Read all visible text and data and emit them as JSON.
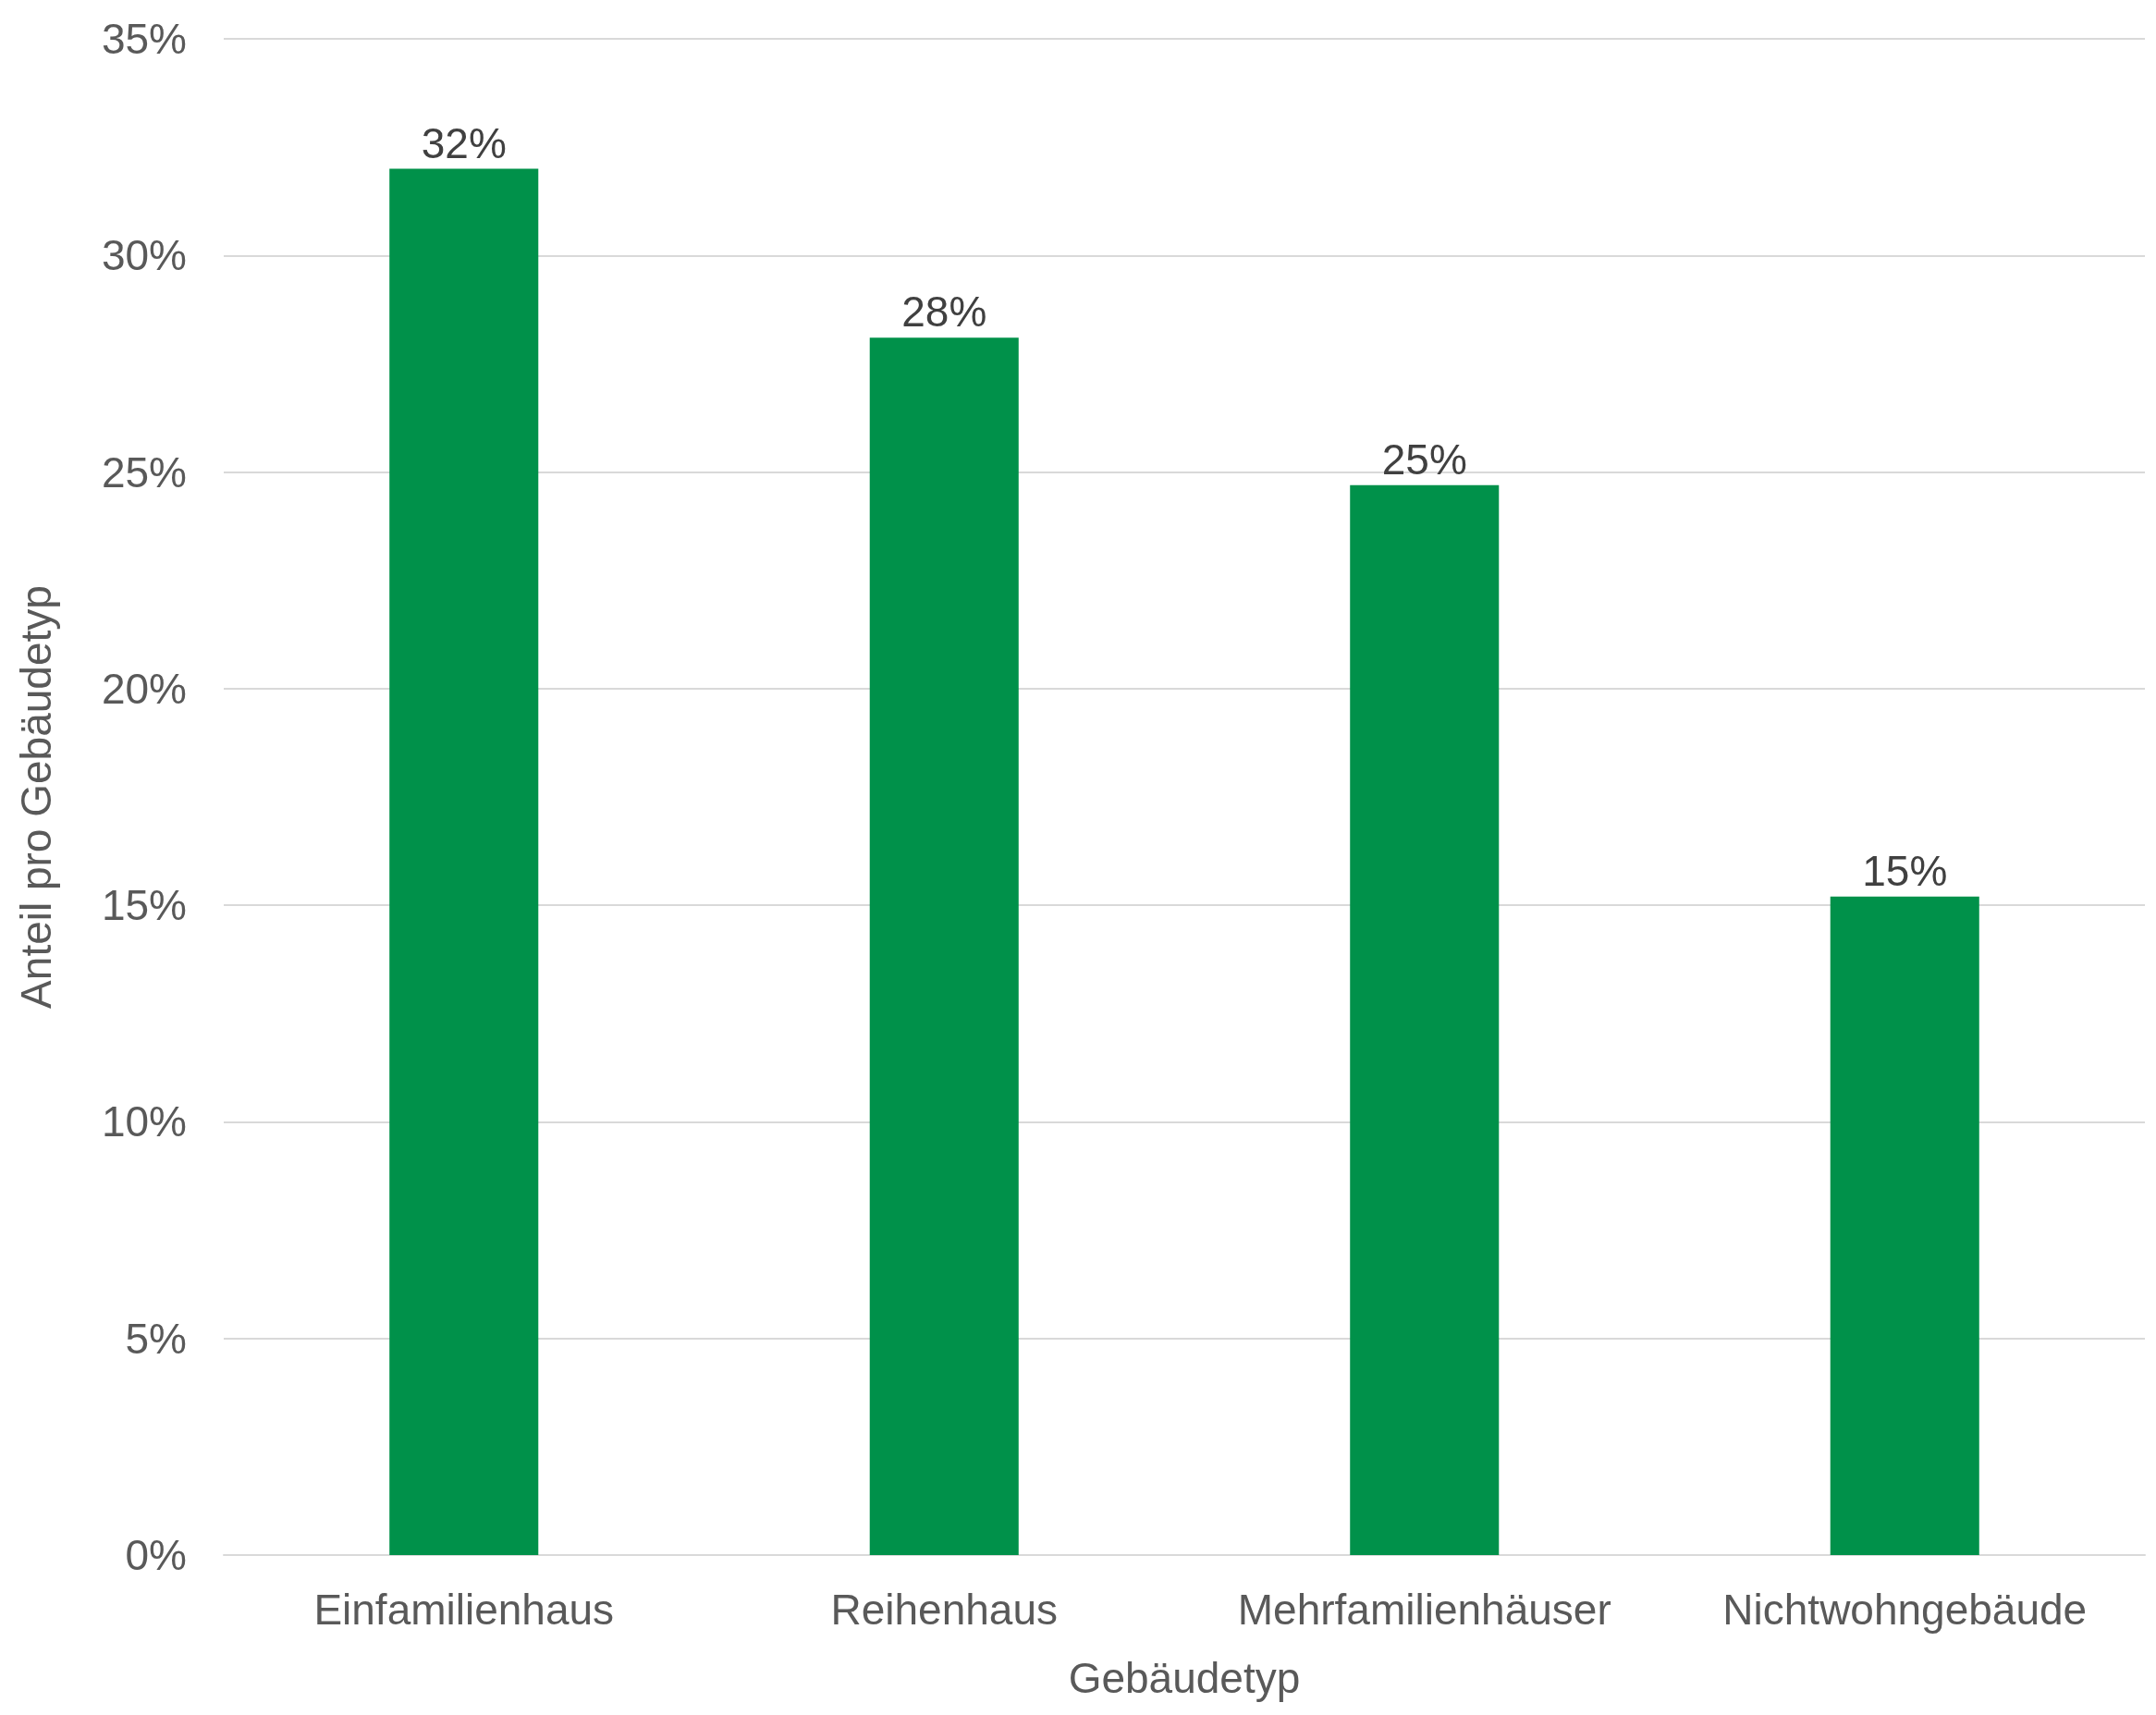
{
  "chart_data": {
    "type": "bar",
    "xlabel": "Gebäudetyp",
    "ylabel": "Anteil pro Gebäudetyp",
    "categories": [
      "Einfamilienhaus",
      "Reihenhaus",
      "Mehrfamilienhäuser",
      "Nichtwohngebäude"
    ],
    "values": [
      32,
      28.1,
      24.7,
      15.2
    ],
    "value_labels": [
      "32%",
      "28%",
      "25%",
      "15%"
    ],
    "color": "#00914a",
    "ylim": [
      0,
      35
    ],
    "yticks": [
      {
        "value": 0,
        "label": "0%"
      },
      {
        "value": 5,
        "label": "5%"
      },
      {
        "value": 10,
        "label": "10%"
      },
      {
        "value": 15,
        "label": "15%"
      },
      {
        "value": 20,
        "label": "20%"
      },
      {
        "value": 25,
        "label": "25%"
      },
      {
        "value": 30,
        "label": "30%"
      },
      {
        "value": 35,
        "label": "35%"
      }
    ],
    "grid": "y"
  }
}
